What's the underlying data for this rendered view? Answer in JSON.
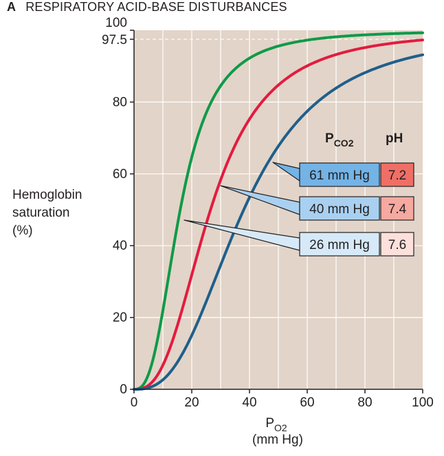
{
  "title_letter": "A",
  "title": "RESPIRATORY ACID-BASE DISTURBANCES",
  "chart_data": {
    "type": "line",
    "title": "RESPIRATORY ACID-BASE DISTURBANCES",
    "ylabel_lines": [
      "Hemoglobin",
      "saturation",
      "(%)"
    ],
    "xlabel_main": "P",
    "xlabel_sub": "O2",
    "xlabel_unit": "(mm Hg)",
    "xlim": [
      0,
      100
    ],
    "ylim": [
      0,
      100
    ],
    "x_ticks": [
      0,
      20,
      40,
      60,
      80,
      100
    ],
    "x_tick_labels": [
      "0",
      "20",
      "40",
      "60",
      "80",
      "100"
    ],
    "y_ticks": [
      0,
      20,
      40,
      60,
      80,
      97.5,
      100
    ],
    "y_tick_labels": [
      "0",
      "20",
      "40",
      "60",
      "80",
      "97.5",
      "100"
    ],
    "reference_line_y": 97.5,
    "grid": true,
    "background": "#e2d4c8",
    "table_headers": {
      "pco2_main": "P",
      "pco2_sub": "CO2",
      "ph": "pH"
    },
    "series": [
      {
        "pco2": "26 mm Hg",
        "ph": "7.6",
        "color": "#0f9a48",
        "ph_bg": "#fde0dc",
        "box_bg": "#d6e9f8",
        "p50": 16,
        "n": 2.7
      },
      {
        "pco2": "40 mm Hg",
        "ph": "7.4",
        "color": "#e31b3f",
        "ph_bg": "#f6a9a0",
        "box_bg": "#a9d0f0",
        "p50": 26.5,
        "n": 2.7
      },
      {
        "pco2": "61 mm Hg",
        "ph": "7.2",
        "color": "#1f5f8b",
        "ph_bg": "#ef6f66",
        "box_bg": "#73b3e6",
        "p50": 38,
        "n": 2.7
      }
    ]
  }
}
